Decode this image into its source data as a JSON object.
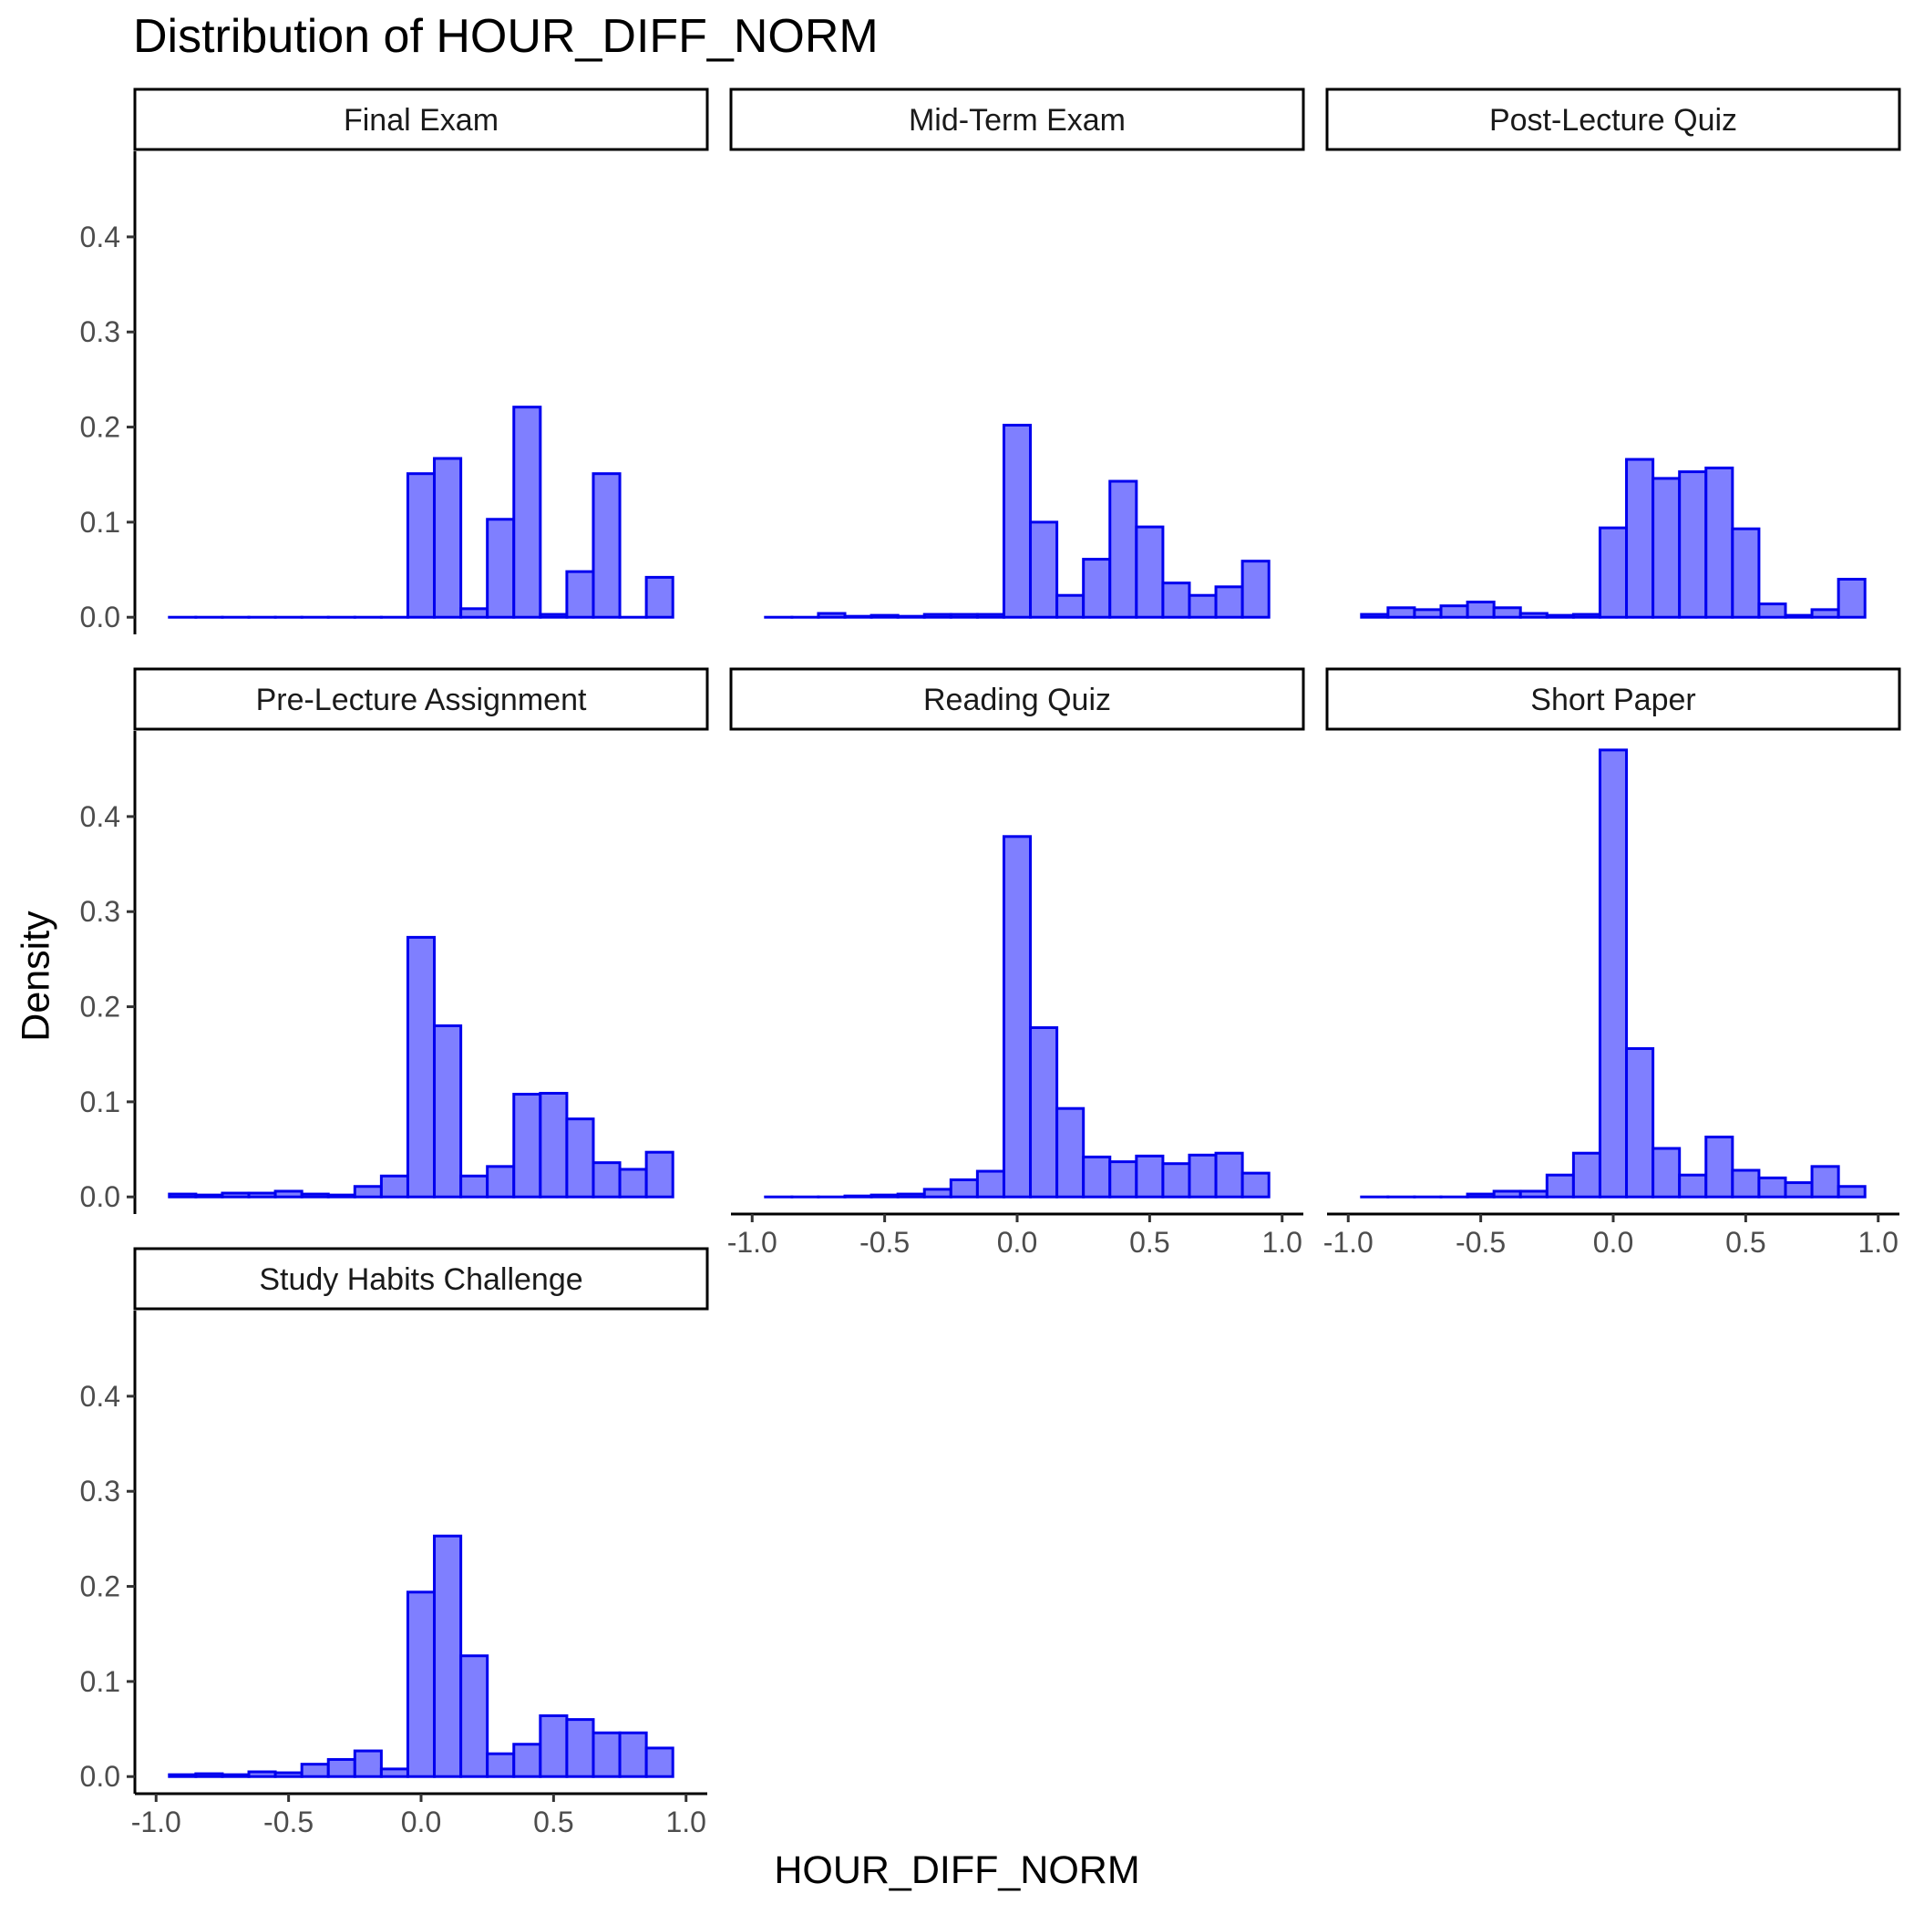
{
  "chart_data": {
    "type": "bar",
    "title": "Distribution of HOUR_DIFF_NORM",
    "xlabel": "HOUR_DIFF_NORM",
    "ylabel": "Density",
    "xlim": [
      -1.08,
      1.08
    ],
    "ylim": [
      -0.018,
      0.49
    ],
    "x_ticks": [
      "-1.0",
      "-0.5",
      "0.0",
      "0.5",
      "1.0"
    ],
    "y_ticks": [
      "0.0",
      "0.1",
      "0.2",
      "0.3",
      "0.4"
    ],
    "bin_width": 0.1,
    "bin_centers": [
      -0.9,
      -0.8,
      -0.7,
      -0.6,
      -0.5,
      -0.4,
      -0.3,
      -0.2,
      -0.1,
      0.0,
      0.1,
      0.2,
      0.3,
      0.4,
      0.5,
      0.6,
      0.7,
      0.8,
      0.9
    ],
    "bar_fill": "#7f7fff",
    "bar_stroke": "#0000ee",
    "panels": [
      {
        "name": "Final Exam",
        "values": [
          0,
          0,
          0,
          0,
          0,
          0,
          0,
          0,
          0,
          0.151,
          0.167,
          0.009,
          0.103,
          0.221,
          0.003,
          0.048,
          0.151,
          0,
          0.042
        ]
      },
      {
        "name": "Mid-Term Exam",
        "values": [
          0,
          0,
          0.004,
          0.001,
          0.002,
          0.001,
          0.003,
          0.003,
          0.003,
          0.202,
          0.1,
          0.023,
          0.061,
          0.143,
          0.095,
          0.036,
          0.023,
          0.032,
          0.059
        ]
      },
      {
        "name": "Post-Lecture Quiz",
        "values": [
          0.003,
          0.01,
          0.008,
          0.012,
          0.016,
          0.01,
          0.004,
          0.002,
          0.003,
          0.094,
          0.166,
          0.146,
          0.153,
          0.157,
          0.093,
          0.014,
          0.002,
          0.008,
          0.04
        ]
      },
      {
        "name": "Pre-Lecture Assignment",
        "values": [
          0.003,
          0.002,
          0.004,
          0.004,
          0.006,
          0.003,
          0.002,
          0.011,
          0.022,
          0.273,
          0.18,
          0.022,
          0.032,
          0.108,
          0.109,
          0.082,
          0.036,
          0.029,
          0.047
        ]
      },
      {
        "name": "Reading Quiz",
        "values": [
          0,
          0,
          0,
          0.001,
          0.002,
          0.003,
          0.008,
          0.018,
          0.027,
          0.379,
          0.178,
          0.093,
          0.042,
          0.037,
          0.043,
          0.035,
          0.044,
          0.046,
          0.025
        ]
      },
      {
        "name": "Short Paper",
        "values": [
          0,
          0,
          0,
          0,
          0.003,
          0.006,
          0.006,
          0.023,
          0.046,
          0.47,
          0.156,
          0.051,
          0.023,
          0.063,
          0.028,
          0.02,
          0.015,
          0.032,
          0.011
        ]
      },
      {
        "name": "Study Habits Challenge",
        "values": [
          0.002,
          0.003,
          0.002,
          0.005,
          0.004,
          0.013,
          0.018,
          0.027,
          0.008,
          0.194,
          0.253,
          0.127,
          0.024,
          0.034,
          0.064,
          0.06,
          0.046,
          0.046,
          0.03
        ]
      }
    ]
  }
}
